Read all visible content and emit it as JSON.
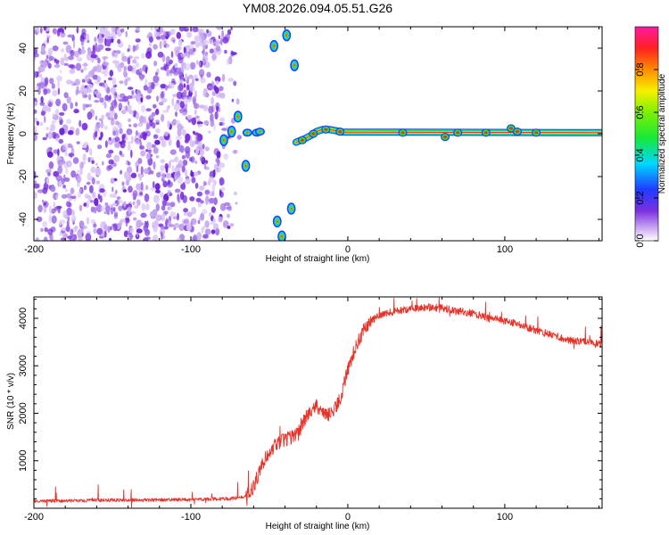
{
  "title": "YM08.2026.094.05.51.G26",
  "colors": {
    "snr_line": "#e8332a",
    "trace_core": "#ff2a2a",
    "speckle": "#7b2fe0",
    "frame": "#000000"
  },
  "chart_data": [
    {
      "type": "heatmap",
      "name": "spectrogram",
      "xlabel": "Height of straight line (km)",
      "ylabel": "Frequency (Hz)",
      "xlim": [
        -200,
        162
      ],
      "ylim": [
        -50,
        50
      ],
      "xticks": [
        "-200",
        "-100",
        "0",
        "100"
      ],
      "yticks": [
        "40",
        "20",
        "0",
        "-20",
        "-40"
      ],
      "noise_region_x": [
        -200,
        -70
      ],
      "main_trace_x": [
        -33,
        162
      ],
      "main_trace_freq_hz": 0.5,
      "isolated_blobs": [
        {
          "x": -47,
          "y": 41
        },
        {
          "x": -39,
          "y": 46
        },
        {
          "x": -34,
          "y": 32
        },
        {
          "x": -70,
          "y": 8
        },
        {
          "x": -74,
          "y": 1
        },
        {
          "x": -65,
          "y": -15
        },
        {
          "x": -36,
          "y": -35
        },
        {
          "x": -45,
          "y": -41
        },
        {
          "x": -42,
          "y": -48
        },
        {
          "x": -79,
          "y": -3
        }
      ],
      "colorbar": {
        "label": "Normalized spectral amplitude",
        "ticks": [
          "0.0",
          "0.2",
          "0.4",
          "0.6",
          "0.8"
        ],
        "range": [
          0,
          1
        ]
      }
    },
    {
      "type": "line",
      "name": "snr",
      "xlabel": "Height of straight line (km)",
      "ylabel": "SNR (10 * v/v)",
      "xlim": [
        -200,
        162
      ],
      "ylim": [
        0,
        4450
      ],
      "xticks": [
        "-200",
        "-100",
        "0",
        "100"
      ],
      "yticks": [
        "1000",
        "2000",
        "3000",
        "4000"
      ],
      "series": [
        {
          "name": "SNR",
          "x": [
            -200,
            -150,
            -100,
            -75,
            -65,
            -60,
            -55,
            -50,
            -45,
            -40,
            -35,
            -30,
            -25,
            -20,
            -15,
            -10,
            -5,
            0,
            5,
            10,
            15,
            20,
            30,
            40,
            50,
            60,
            70,
            80,
            90,
            100,
            110,
            120,
            130,
            140,
            150,
            162
          ],
          "y": [
            150,
            170,
            180,
            200,
            250,
            450,
            900,
            1200,
            1350,
            1450,
            1500,
            1700,
            2000,
            2150,
            1950,
            2000,
            2300,
            2900,
            3400,
            3750,
            3950,
            4050,
            4150,
            4200,
            4230,
            4220,
            4150,
            4100,
            4000,
            3950,
            3850,
            3750,
            3650,
            3550,
            3500,
            3450
          ]
        }
      ]
    }
  ]
}
